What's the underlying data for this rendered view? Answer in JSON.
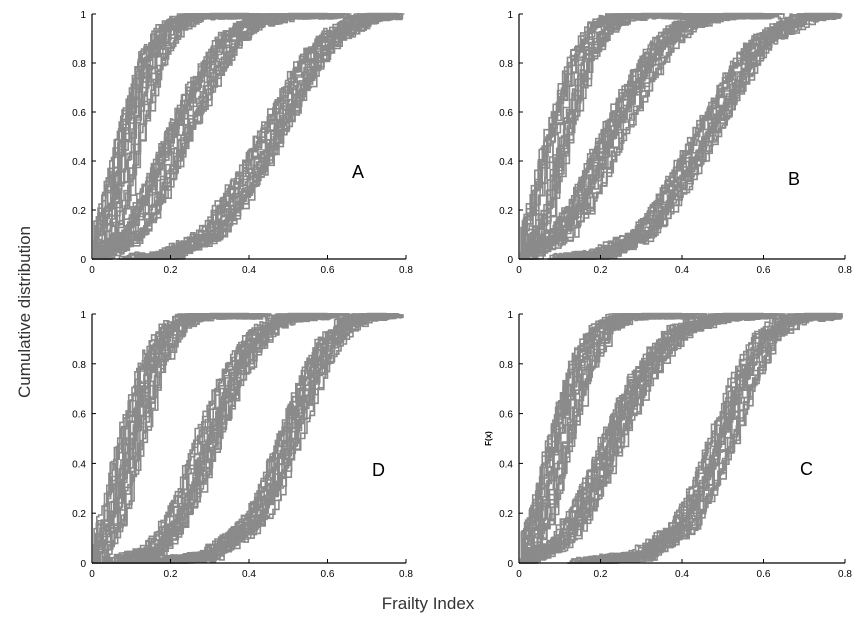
{
  "figure": {
    "ylabel": "Cumulative distribution",
    "xlabel": "Frailty Index"
  },
  "chart_data": [
    {
      "type": "line",
      "panel_label": "A",
      "ylabel": "",
      "xlim": [
        0,
        0.8
      ],
      "ylim": [
        0,
        1
      ],
      "xticks": [
        "0",
        "0.2",
        "0.4",
        "0.6",
        "0.8"
      ],
      "yticks": [
        "0",
        "0.2",
        "0.4",
        "0.6",
        "0.8",
        "1"
      ],
      "color": "#8a8a8a",
      "series": [
        {
          "x": [
            0,
            0.05,
            0.1,
            0.15,
            0.2,
            0.25,
            0.3,
            0.4
          ],
          "y": [
            0.02,
            0.2,
            0.55,
            0.82,
            0.95,
            0.99,
            1,
            1
          ]
        },
        {
          "x": [
            0,
            0.1,
            0.15,
            0.2,
            0.25,
            0.3,
            0.35,
            0.4,
            0.5,
            0.6
          ],
          "y": [
            0,
            0.1,
            0.25,
            0.45,
            0.62,
            0.78,
            0.9,
            0.96,
            1,
            1
          ]
        },
        {
          "x": [
            0.1,
            0.2,
            0.3,
            0.35,
            0.4,
            0.45,
            0.5,
            0.55,
            0.6,
            0.7,
            0.78
          ],
          "y": [
            0,
            0.02,
            0.1,
            0.22,
            0.35,
            0.5,
            0.65,
            0.8,
            0.9,
            0.99,
            1
          ]
        }
      ]
    },
    {
      "type": "line",
      "panel_label": "B",
      "ylabel": "",
      "xlim": [
        0,
        0.8
      ],
      "ylim": [
        0,
        1
      ],
      "xticks": [
        "0",
        "0.2",
        "0.4",
        "0.6",
        "0.8"
      ],
      "yticks": [
        "0",
        "0.2",
        "0.4",
        "0.6",
        "0.8",
        "1"
      ],
      "color": "#8a8a8a",
      "series": [
        {
          "x": [
            0,
            0.05,
            0.1,
            0.15,
            0.2,
            0.25,
            0.3,
            0.4
          ],
          "y": [
            0.02,
            0.2,
            0.55,
            0.82,
            0.95,
            0.99,
            1,
            1
          ]
        },
        {
          "x": [
            0,
            0.1,
            0.15,
            0.2,
            0.25,
            0.3,
            0.35,
            0.4,
            0.5,
            0.6
          ],
          "y": [
            0,
            0.1,
            0.22,
            0.4,
            0.58,
            0.74,
            0.87,
            0.95,
            1,
            1
          ]
        },
        {
          "x": [
            0.1,
            0.2,
            0.3,
            0.35,
            0.4,
            0.45,
            0.5,
            0.55,
            0.6,
            0.7,
            0.78
          ],
          "y": [
            0,
            0.02,
            0.1,
            0.22,
            0.35,
            0.5,
            0.65,
            0.8,
            0.9,
            0.99,
            1
          ]
        }
      ]
    },
    {
      "type": "line",
      "panel_label": "D",
      "ylabel": "",
      "xlim": [
        0,
        0.8
      ],
      "ylim": [
        0,
        1
      ],
      "xticks": [
        "0",
        "0.2",
        "0.4",
        "0.6",
        "0.8"
      ],
      "yticks": [
        "0",
        "0.2",
        "0.4",
        "0.6",
        "0.8",
        "1"
      ],
      "color": "#8a8a8a",
      "series": [
        {
          "x": [
            0,
            0.05,
            0.1,
            0.15,
            0.2,
            0.25,
            0.3,
            0.4
          ],
          "y": [
            0.02,
            0.18,
            0.52,
            0.8,
            0.94,
            0.99,
            1,
            1
          ]
        },
        {
          "x": [
            0.05,
            0.15,
            0.2,
            0.25,
            0.3,
            0.35,
            0.4,
            0.45,
            0.5,
            0.6
          ],
          "y": [
            0,
            0.05,
            0.15,
            0.32,
            0.55,
            0.75,
            0.88,
            0.96,
            0.99,
            1
          ]
        },
        {
          "x": [
            0.15,
            0.3,
            0.4,
            0.45,
            0.5,
            0.55,
            0.6,
            0.65,
            0.7,
            0.75
          ],
          "y": [
            0,
            0.03,
            0.15,
            0.28,
            0.5,
            0.72,
            0.88,
            0.96,
            0.99,
            1
          ]
        }
      ]
    },
    {
      "type": "line",
      "panel_label": "C",
      "ylabel": "F(x)",
      "xlim": [
        0,
        0.8
      ],
      "ylim": [
        0,
        1
      ],
      "xticks": [
        "0",
        "0.2",
        "0.4",
        "0.6",
        "0.8"
      ],
      "yticks": [
        "0",
        "0.2",
        "0.4",
        "0.6",
        "0.8",
        "1"
      ],
      "color": "#8a8a8a",
      "series": [
        {
          "x": [
            0,
            0.05,
            0.1,
            0.15,
            0.2,
            0.25,
            0.3,
            0.4
          ],
          "y": [
            0.02,
            0.18,
            0.52,
            0.8,
            0.94,
            0.99,
            1,
            1
          ]
        },
        {
          "x": [
            0,
            0.1,
            0.15,
            0.2,
            0.25,
            0.3,
            0.35,
            0.4,
            0.5,
            0.6
          ],
          "y": [
            0,
            0.08,
            0.2,
            0.38,
            0.58,
            0.74,
            0.86,
            0.94,
            0.99,
            1
          ]
        },
        {
          "x": [
            0.15,
            0.3,
            0.4,
            0.45,
            0.5,
            0.55,
            0.6,
            0.65,
            0.7,
            0.78
          ],
          "y": [
            0,
            0.03,
            0.15,
            0.3,
            0.52,
            0.74,
            0.9,
            0.97,
            0.99,
            1
          ]
        }
      ]
    }
  ]
}
